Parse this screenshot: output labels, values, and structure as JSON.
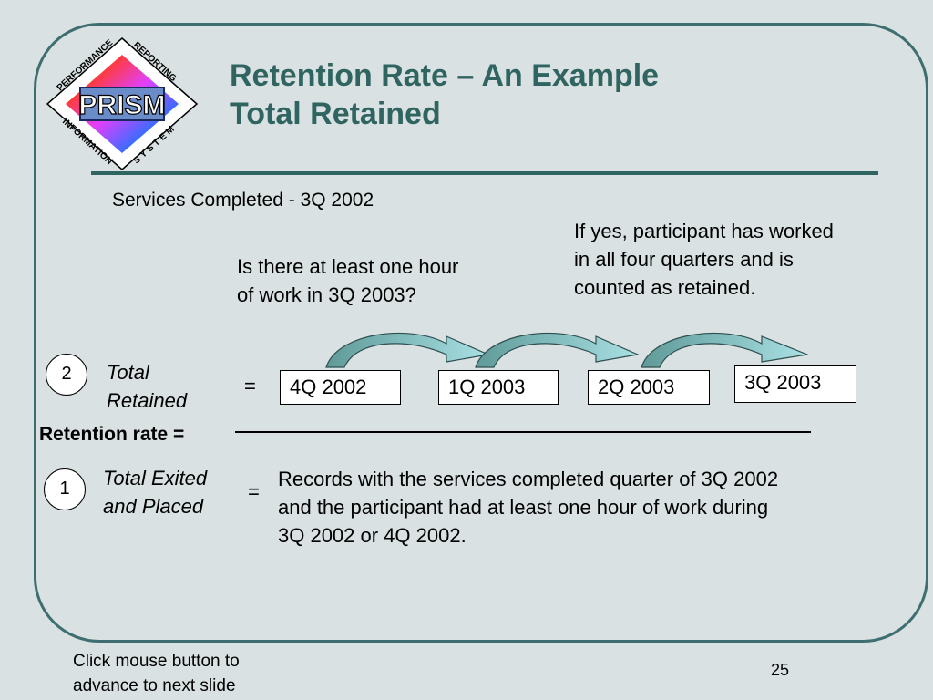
{
  "slide": {
    "title_line1": "Retention Rate – An Example",
    "title_line2": "Total Retained",
    "logo": {
      "center": "PRISM",
      "top_left": "PERFORMANCE",
      "top_right": "REPORTING",
      "bottom_left": "INFORMATION",
      "bottom_right": "SYSTEM"
    },
    "services_completed": "Services Completed - 3Q 2002",
    "question_line1": "Is there at least one hour",
    "question_line2": "of work in 3Q 2003?",
    "answer_line1": "If yes, participant has worked",
    "answer_line2": "in all four quarters and is",
    "answer_line3": "counted as retained.",
    "numerator": {
      "number": "2",
      "label_line1": "Total",
      "label_line2": "Retained",
      "equals": "=",
      "quarters": [
        "4Q 2002",
        "1Q 2003",
        "2Q 2003",
        "3Q 2003"
      ]
    },
    "retention_rate_label": "Retention rate =",
    "denominator": {
      "number": "1",
      "label_line1": "Total Exited",
      "label_line2": "and Placed",
      "equals": "=",
      "desc_line1": "Records with the services completed quarter of 3Q 2002",
      "desc_line2": "and the participant had at least one hour of work during",
      "desc_line3": "3Q 2002 or 4Q 2002."
    },
    "footer_line1": "Click mouse button to",
    "footer_line2": "advance to next slide",
    "page_number": "25",
    "colors": {
      "title": "#2f6461",
      "frame": "#3f6e70",
      "background": "#d9e1e2",
      "arrow_dark": "#5f9a98",
      "arrow_light": "#a9e0e4"
    }
  }
}
